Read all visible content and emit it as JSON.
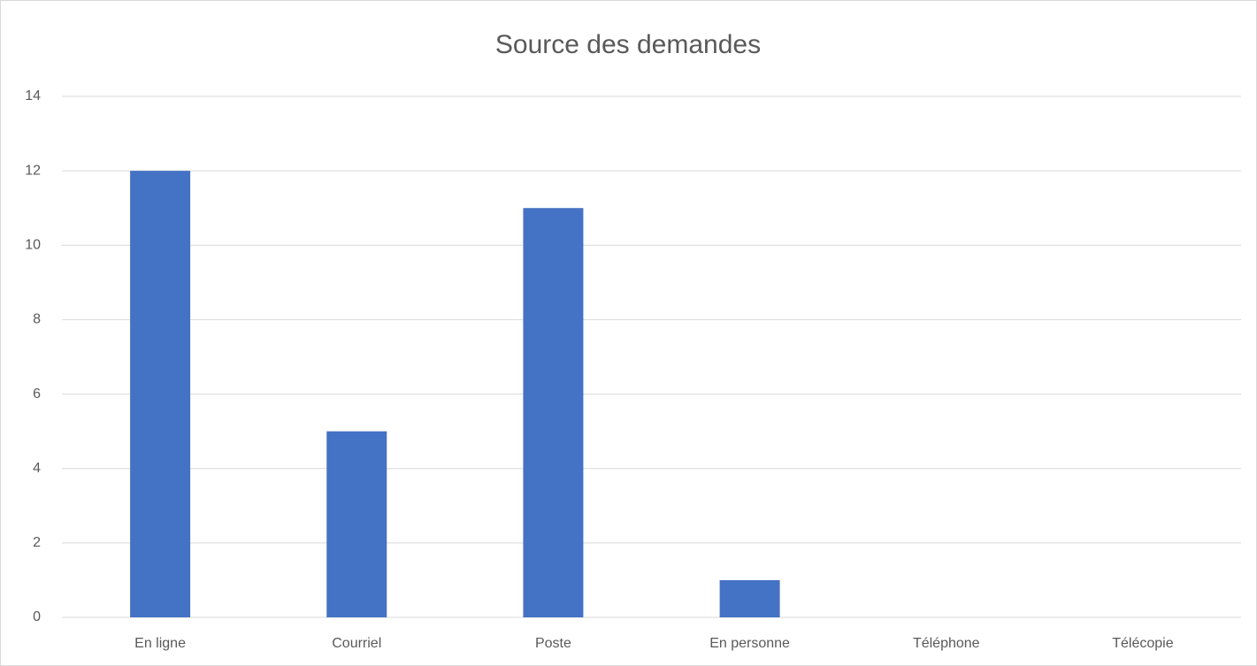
{
  "chart_data": {
    "type": "bar",
    "title": "Source des demandes",
    "categories": [
      "En ligne",
      "Courriel",
      "Poste",
      "En personne",
      "Téléphone",
      "Télécopie"
    ],
    "values": [
      12,
      5,
      11,
      1,
      0,
      0
    ],
    "color": "#4472c4",
    "ylim": [
      0,
      14
    ],
    "yticks": [
      0,
      2,
      4,
      6,
      8,
      10,
      12,
      14
    ],
    "grid": true
  }
}
